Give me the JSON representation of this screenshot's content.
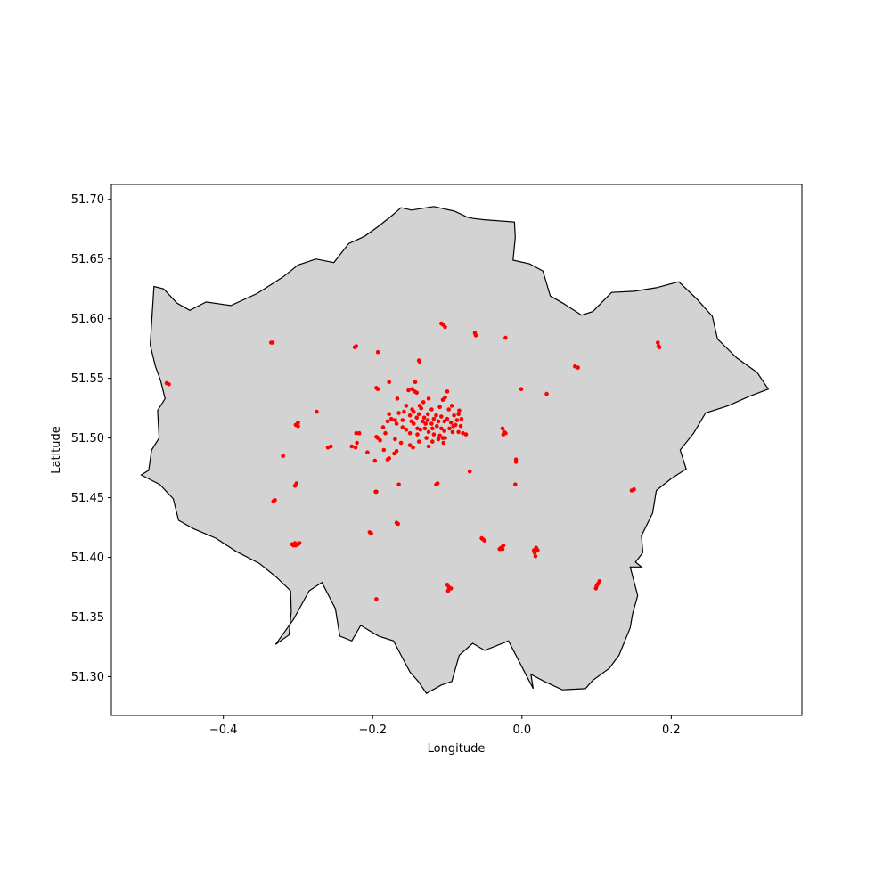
{
  "chart_data": {
    "type": "scatter",
    "title": "",
    "xlabel": "Longitude",
    "ylabel": "Latitude",
    "xlim": [
      -0.55,
      0.375
    ],
    "ylim": [
      51.2675,
      51.7125
    ],
    "xticks": [
      -0.4,
      -0.2,
      0.0,
      0.2
    ],
    "xtick_labels": [
      "−0.4",
      "−0.2",
      "0.0",
      "0.2"
    ],
    "yticks": [
      51.3,
      51.35,
      51.4,
      51.45,
      51.5,
      51.55,
      51.6,
      51.65,
      51.7
    ],
    "ytick_labels": [
      "51.30",
      "51.35",
      "51.40",
      "51.45",
      "51.50",
      "51.55",
      "51.60",
      "51.65",
      "51.70"
    ],
    "grid": false,
    "legend": "none",
    "colors": {
      "points": "#ff0000",
      "boundary_fill": "#d3d3d3",
      "boundary_edge": "#000000"
    },
    "boundary": [
      [
        -0.51,
        51.469
      ],
      [
        -0.5,
        51.473
      ],
      [
        -0.496,
        51.49
      ],
      [
        -0.486,
        51.5
      ],
      [
        -0.488,
        51.523
      ],
      [
        -0.478,
        51.533
      ],
      [
        -0.484,
        51.548
      ],
      [
        -0.491,
        51.56
      ],
      [
        -0.498,
        51.578
      ],
      [
        -0.496,
        51.597
      ],
      [
        -0.493,
        51.627
      ],
      [
        -0.48,
        51.625
      ],
      [
        -0.462,
        51.613
      ],
      [
        -0.445,
        51.607
      ],
      [
        -0.423,
        51.614
      ],
      [
        -0.39,
        51.611
      ],
      [
        -0.355,
        51.621
      ],
      [
        -0.32,
        51.635
      ],
      [
        -0.3,
        51.645
      ],
      [
        -0.276,
        51.65
      ],
      [
        -0.252,
        51.647
      ],
      [
        -0.232,
        51.663
      ],
      [
        -0.211,
        51.669
      ],
      [
        -0.193,
        51.677
      ],
      [
        -0.175,
        51.686
      ],
      [
        -0.162,
        51.693
      ],
      [
        -0.148,
        51.691
      ],
      [
        -0.118,
        51.694
      ],
      [
        -0.09,
        51.69
      ],
      [
        -0.073,
        51.685
      ],
      [
        -0.065,
        51.684
      ],
      [
        -0.052,
        51.683
      ],
      [
        -0.01,
        51.681
      ],
      [
        -0.009,
        51.668
      ],
      [
        -0.012,
        51.649
      ],
      [
        0.01,
        51.646
      ],
      [
        0.028,
        51.64
      ],
      [
        0.038,
        51.619
      ],
      [
        0.055,
        51.613
      ],
      [
        0.08,
        51.603
      ],
      [
        0.095,
        51.606
      ],
      [
        0.12,
        51.622
      ],
      [
        0.15,
        51.623
      ],
      [
        0.18,
        51.626
      ],
      [
        0.21,
        51.631
      ],
      [
        0.235,
        51.616
      ],
      [
        0.255,
        51.602
      ],
      [
        0.262,
        51.583
      ],
      [
        0.288,
        51.567
      ],
      [
        0.315,
        51.555
      ],
      [
        0.33,
        51.541
      ],
      [
        0.305,
        51.535
      ],
      [
        0.276,
        51.527
      ],
      [
        0.246,
        51.521
      ],
      [
        0.23,
        51.504
      ],
      [
        0.212,
        51.49
      ],
      [
        0.22,
        51.474
      ],
      [
        0.2,
        51.466
      ],
      [
        0.18,
        51.456
      ],
      [
        0.175,
        51.437
      ],
      [
        0.16,
        51.418
      ],
      [
        0.162,
        51.404
      ],
      [
        0.152,
        51.396
      ],
      [
        0.16,
        51.392
      ],
      [
        0.145,
        51.392
      ],
      [
        0.155,
        51.368
      ],
      [
        0.148,
        51.352
      ],
      [
        0.145,
        51.341
      ],
      [
        0.13,
        51.318
      ],
      [
        0.117,
        51.307
      ],
      [
        0.095,
        51.297
      ],
      [
        0.085,
        51.29
      ],
      [
        0.054,
        51.289
      ],
      [
        0.03,
        51.296
      ],
      [
        0.012,
        51.302
      ],
      [
        0.015,
        51.29
      ],
      [
        -0.018,
        51.33
      ],
      [
        -0.05,
        51.322
      ],
      [
        -0.066,
        51.328
      ],
      [
        -0.084,
        51.318
      ],
      [
        -0.094,
        51.296
      ],
      [
        -0.108,
        51.293
      ],
      [
        -0.128,
        51.286
      ],
      [
        -0.139,
        51.296
      ],
      [
        -0.15,
        51.304
      ],
      [
        -0.162,
        51.318
      ],
      [
        -0.172,
        51.33
      ],
      [
        -0.192,
        51.334
      ],
      [
        -0.216,
        51.343
      ],
      [
        -0.228,
        51.33
      ],
      [
        -0.244,
        51.334
      ],
      [
        -0.25,
        51.357
      ],
      [
        -0.268,
        51.379
      ],
      [
        -0.285,
        51.372
      ],
      [
        -0.306,
        51.348
      ],
      [
        -0.33,
        51.327
      ],
      [
        -0.312,
        51.335
      ],
      [
        -0.309,
        51.355
      ],
      [
        -0.31,
        51.372
      ],
      [
        -0.33,
        51.384
      ],
      [
        -0.352,
        51.395
      ],
      [
        -0.383,
        51.405
      ],
      [
        -0.41,
        51.416
      ],
      [
        -0.44,
        51.424
      ],
      [
        -0.46,
        51.431
      ],
      [
        -0.467,
        51.449
      ],
      [
        -0.485,
        51.461
      ],
      [
        -0.51,
        51.469
      ]
    ],
    "points": [
      [
        -0.334,
        51.58
      ],
      [
        -0.336,
        51.58
      ],
      [
        -0.222,
        51.577
      ],
      [
        -0.224,
        51.576
      ],
      [
        -0.193,
        51.572
      ],
      [
        -0.108,
        51.596
      ],
      [
        -0.106,
        51.595
      ],
      [
        -0.103,
        51.593
      ],
      [
        -0.063,
        51.588
      ],
      [
        -0.062,
        51.586
      ],
      [
        -0.022,
        51.584
      ],
      [
        -0.138,
        51.565
      ],
      [
        -0.137,
        51.564
      ],
      [
        -0.476,
        51.546
      ],
      [
        -0.473,
        51.545
      ],
      [
        -0.178,
        51.547
      ],
      [
        -0.195,
        51.542
      ],
      [
        -0.193,
        51.541
      ],
      [
        -0.143,
        51.547
      ],
      [
        -0.147,
        51.541
      ],
      [
        -0.141,
        51.538
      ],
      [
        -0.144,
        51.539
      ],
      [
        -0.152,
        51.54
      ],
      [
        -0.1,
        51.539
      ],
      [
        -0.103,
        51.534
      ],
      [
        -0.106,
        51.532
      ],
      [
        -0.125,
        51.533
      ],
      [
        -0.167,
        51.533
      ],
      [
        -0.001,
        51.541
      ],
      [
        0.033,
        51.537
      ],
      [
        0.071,
        51.56
      ],
      [
        0.075,
        51.559
      ],
      [
        0.182,
        51.58
      ],
      [
        0.183,
        51.577
      ],
      [
        0.184,
        51.576
      ],
      [
        -0.275,
        51.522
      ],
      [
        -0.3,
        51.513
      ],
      [
        -0.303,
        51.511
      ],
      [
        -0.3,
        51.51
      ],
      [
        -0.178,
        51.52
      ],
      [
        -0.17,
        51.515
      ],
      [
        -0.165,
        51.521
      ],
      [
        -0.158,
        51.522
      ],
      [
        -0.16,
        51.515
      ],
      [
        -0.15,
        51.519
      ],
      [
        -0.145,
        51.522
      ],
      [
        -0.141,
        51.517
      ],
      [
        -0.138,
        51.52
      ],
      [
        -0.135,
        51.525
      ],
      [
        -0.131,
        51.517
      ],
      [
        -0.129,
        51.512
      ],
      [
        -0.126,
        51.515
      ],
      [
        -0.121,
        51.512
      ],
      [
        -0.118,
        51.516
      ],
      [
        -0.115,
        51.519
      ],
      [
        -0.112,
        51.514
      ],
      [
        -0.108,
        51.518
      ],
      [
        -0.104,
        51.514
      ],
      [
        -0.1,
        51.516
      ],
      [
        -0.095,
        51.513
      ],
      [
        -0.091,
        51.519
      ],
      [
        -0.087,
        51.515
      ],
      [
        -0.082,
        51.51
      ],
      [
        -0.085,
        51.52
      ],
      [
        -0.098,
        51.524
      ],
      [
        -0.094,
        51.527
      ],
      [
        -0.145,
        51.512
      ],
      [
        -0.14,
        51.508
      ],
      [
        -0.136,
        51.507
      ],
      [
        -0.13,
        51.508
      ],
      [
        -0.125,
        51.505
      ],
      [
        -0.12,
        51.508
      ],
      [
        -0.18,
        51.514
      ],
      [
        -0.175,
        51.516
      ],
      [
        -0.168,
        51.512
      ],
      [
        -0.16,
        51.509
      ],
      [
        -0.155,
        51.507
      ],
      [
        -0.15,
        51.504
      ],
      [
        -0.14,
        51.503
      ],
      [
        -0.128,
        51.5
      ],
      [
        -0.118,
        51.503
      ],
      [
        -0.11,
        51.502
      ],
      [
        -0.103,
        51.5
      ],
      [
        -0.093,
        51.505
      ],
      [
        -0.085,
        51.505
      ],
      [
        -0.079,
        51.504
      ],
      [
        -0.075,
        51.503
      ],
      [
        -0.089,
        51.511
      ],
      [
        -0.081,
        51.516
      ],
      [
        -0.084,
        51.523
      ],
      [
        -0.132,
        51.53
      ],
      [
        -0.137,
        51.527
      ],
      [
        -0.147,
        51.524
      ],
      [
        -0.155,
        51.527
      ],
      [
        -0.11,
        51.526
      ],
      [
        -0.121,
        51.524
      ],
      [
        -0.126,
        51.52
      ],
      [
        -0.133,
        51.514
      ],
      [
        -0.148,
        51.514
      ],
      [
        -0.114,
        51.51
      ],
      [
        -0.108,
        51.508
      ],
      [
        -0.104,
        51.506
      ],
      [
        -0.097,
        51.508
      ],
      [
        -0.092,
        51.51
      ],
      [
        -0.186,
        51.509
      ],
      [
        -0.183,
        51.504
      ],
      [
        -0.195,
        51.501
      ],
      [
        -0.193,
        51.5
      ],
      [
        -0.19,
        51.498
      ],
      [
        -0.17,
        51.499
      ],
      [
        -0.162,
        51.496
      ],
      [
        -0.15,
        51.494
      ],
      [
        -0.146,
        51.492
      ],
      [
        -0.138,
        51.497
      ],
      [
        -0.125,
        51.493
      ],
      [
        -0.12,
        51.497
      ],
      [
        -0.112,
        51.499
      ],
      [
        -0.106,
        51.5
      ],
      [
        -0.105,
        51.496
      ],
      [
        -0.185,
        51.49
      ],
      [
        -0.168,
        51.489
      ],
      [
        -0.171,
        51.487
      ],
      [
        -0.26,
        51.492
      ],
      [
        -0.256,
        51.493
      ],
      [
        -0.228,
        51.493
      ],
      [
        -0.223,
        51.492
      ],
      [
        -0.221,
        51.496
      ],
      [
        -0.222,
        51.504
      ],
      [
        -0.218,
        51.504
      ],
      [
        -0.197,
        51.481
      ],
      [
        -0.207,
        51.488
      ],
      [
        -0.178,
        51.483
      ],
      [
        -0.18,
        51.482
      ],
      [
        -0.32,
        51.485
      ],
      [
        -0.302,
        51.462
      ],
      [
        -0.304,
        51.46
      ],
      [
        -0.331,
        51.448
      ],
      [
        -0.333,
        51.447
      ],
      [
        -0.196,
        51.455
      ],
      [
        -0.195,
        51.455
      ],
      [
        -0.165,
        51.461
      ],
      [
        -0.113,
        51.462
      ],
      [
        -0.115,
        51.461
      ],
      [
        -0.07,
        51.472
      ],
      [
        -0.008,
        51.482
      ],
      [
        -0.008,
        51.48
      ],
      [
        -0.009,
        51.461
      ],
      [
        -0.026,
        51.508
      ],
      [
        -0.024,
        51.505
      ],
      [
        -0.022,
        51.504
      ],
      [
        -0.025,
        51.503
      ],
      [
        -0.204,
        51.421
      ],
      [
        -0.202,
        51.42
      ],
      [
        -0.168,
        51.429
      ],
      [
        -0.166,
        51.428
      ],
      [
        -0.308,
        51.411
      ],
      [
        -0.306,
        51.41
      ],
      [
        -0.303,
        51.41
      ],
      [
        -0.3,
        51.411
      ],
      [
        -0.298,
        51.412
      ],
      [
        -0.304,
        51.412
      ],
      [
        -0.054,
        51.416
      ],
      [
        -0.052,
        51.415
      ],
      [
        -0.05,
        51.414
      ],
      [
        -0.03,
        51.407
      ],
      [
        -0.028,
        51.408
      ],
      [
        -0.025,
        51.41
      ],
      [
        -0.026,
        51.407
      ],
      [
        0.017,
        51.404
      ],
      [
        0.018,
        51.401
      ],
      [
        0.019,
        51.408
      ],
      [
        0.021,
        51.406
      ],
      [
        0.016,
        51.406
      ],
      [
        -0.1,
        51.377
      ],
      [
        -0.098,
        51.375
      ],
      [
        -0.095,
        51.374
      ],
      [
        -0.099,
        51.372
      ],
      [
        -0.195,
        51.365
      ],
      [
        0.1,
        51.376
      ],
      [
        0.102,
        51.378
      ],
      [
        0.104,
        51.38
      ],
      [
        0.099,
        51.374
      ],
      [
        0.147,
        51.456
      ],
      [
        0.15,
        51.457
      ]
    ]
  }
}
